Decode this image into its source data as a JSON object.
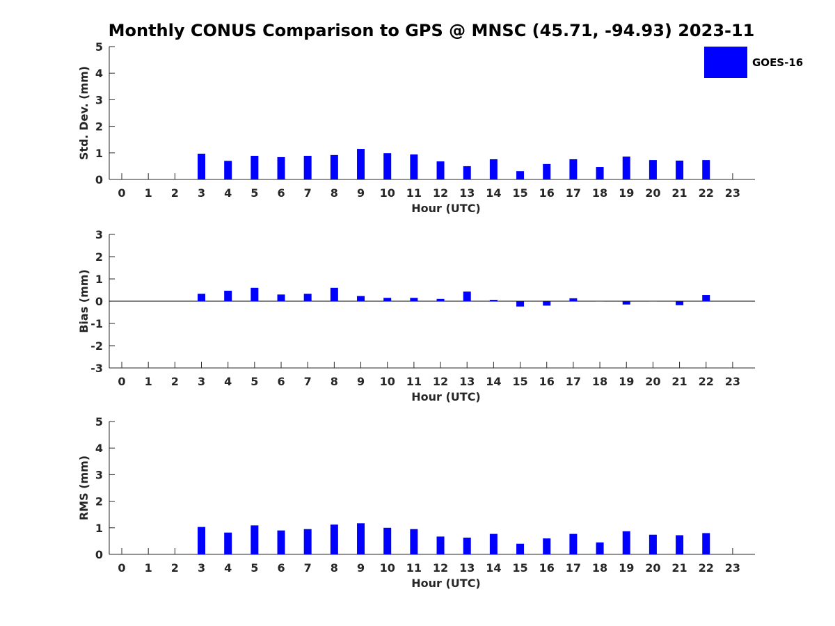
{
  "title": "Monthly CONUS Comparison to GPS @ MNSC (45.71, -94.93) 2023-11",
  "legend": {
    "label": "GOES-16",
    "color": "#0000ff"
  },
  "chart_data": [
    {
      "type": "bar",
      "name": "std-dev",
      "ylabel": "Std. Dev. (mm)",
      "xlabel": "Hour (UTC)",
      "ylim": [
        0,
        5
      ],
      "yticks": [
        "0",
        "1",
        "2",
        "3",
        "4",
        "5"
      ],
      "categories": [
        "0",
        "1",
        "2",
        "3",
        "4",
        "5",
        "6",
        "7",
        "8",
        "9",
        "10",
        "11",
        "12",
        "13",
        "14",
        "15",
        "16",
        "17",
        "18",
        "19",
        "20",
        "21",
        "22",
        "23"
      ],
      "series": [
        {
          "name": "GOES-16",
          "values": [
            null,
            null,
            null,
            0.97,
            0.7,
            0.89,
            0.84,
            0.89,
            0.92,
            1.15,
            0.99,
            0.94,
            0.68,
            0.5,
            0.76,
            0.31,
            0.58,
            0.76,
            0.47,
            0.86,
            0.73,
            0.71,
            0.73,
            null
          ]
        }
      ],
      "grid": false
    },
    {
      "type": "bar",
      "name": "bias",
      "ylabel": "Bias (mm)",
      "xlabel": "Hour (UTC)",
      "ylim": [
        -3,
        3
      ],
      "yticks": [
        "-3",
        "-2",
        "-1",
        "0",
        "1",
        "2",
        "3"
      ],
      "categories": [
        "0",
        "1",
        "2",
        "3",
        "4",
        "5",
        "6",
        "7",
        "8",
        "9",
        "10",
        "11",
        "12",
        "13",
        "14",
        "15",
        "16",
        "17",
        "18",
        "19",
        "20",
        "21",
        "22",
        "23"
      ],
      "series": [
        {
          "name": "GOES-16",
          "values": [
            null,
            null,
            null,
            0.33,
            0.47,
            0.6,
            0.3,
            0.33,
            0.6,
            0.23,
            0.15,
            0.15,
            0.1,
            0.43,
            0.06,
            -0.24,
            -0.2,
            0.13,
            0.0,
            -0.15,
            0.0,
            -0.18,
            0.28,
            null
          ]
        }
      ],
      "zero_line": true,
      "grid": false
    },
    {
      "type": "bar",
      "name": "rms",
      "ylabel": "RMS (mm)",
      "xlabel": "Hour (UTC)",
      "ylim": [
        0,
        5
      ],
      "yticks": [
        "0",
        "1",
        "2",
        "3",
        "4",
        "5"
      ],
      "categories": [
        "0",
        "1",
        "2",
        "3",
        "4",
        "5",
        "6",
        "7",
        "8",
        "9",
        "10",
        "11",
        "12",
        "13",
        "14",
        "15",
        "16",
        "17",
        "18",
        "19",
        "20",
        "21",
        "22",
        "23"
      ],
      "series": [
        {
          "name": "GOES-16",
          "values": [
            null,
            null,
            null,
            1.03,
            0.82,
            1.09,
            0.9,
            0.95,
            1.12,
            1.17,
            1.0,
            0.95,
            0.67,
            0.63,
            0.77,
            0.4,
            0.6,
            0.77,
            0.45,
            0.87,
            0.74,
            0.72,
            0.8,
            null
          ]
        }
      ],
      "grid": false
    }
  ]
}
